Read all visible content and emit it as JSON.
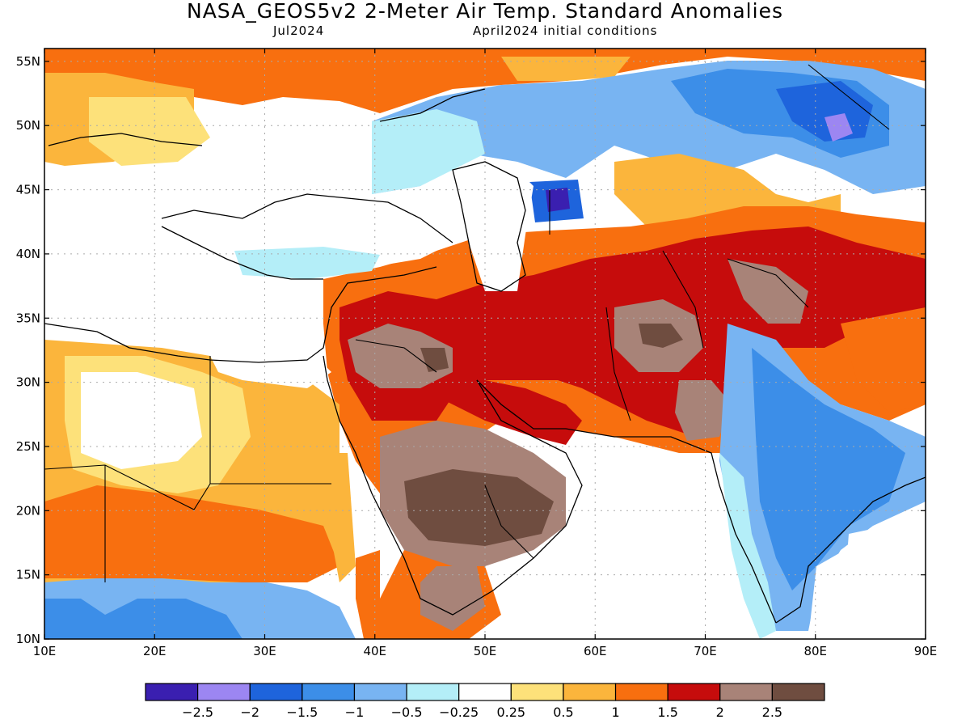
{
  "title": "NASA_GEOS5v2 2-Meter Air Temp. Standard Anomalies",
  "valid_month": "Jul2024",
  "init_conditions": "April2024 initial conditions",
  "lon_ticks": [
    "10E",
    "20E",
    "30E",
    "40E",
    "50E",
    "60E",
    "70E",
    "80E",
    "90E"
  ],
  "lat_ticks": [
    "55N",
    "50N",
    "45N",
    "40N",
    "35N",
    "30N",
    "25N",
    "20N",
    "15N",
    "10N"
  ],
  "map_extent": {
    "lon": [
      10,
      90
    ],
    "lat": [
      10,
      56
    ]
  },
  "colorbar": {
    "colors": [
      "#3a1fb0",
      "#9c86f2",
      "#1e64dc",
      "#3c8ee8",
      "#78b4f2",
      "#b4eef8",
      "#ffffff",
      "#fde17a",
      "#fbb53c",
      "#f86f0f",
      "#c60c0c",
      "#a88378",
      "#6f4d40"
    ],
    "labels": [
      "-2.5",
      "-2",
      "-1.5",
      "-1",
      "-0.5",
      "-0.25",
      "0.25",
      "0.5",
      "1",
      "1.5",
      "2",
      "2.5"
    ]
  },
  "anomaly_regions": [
    {
      "name": "north-europe-positive",
      "level": 1.5,
      "color": "#f86f0f"
    },
    {
      "name": "central-asia-negative",
      "level": -1.5,
      "color": "#1e64dc"
    },
    {
      "name": "kazakhstan-cold-spot",
      "level": -2.5,
      "color": "#3a1fb0"
    },
    {
      "name": "mongolia-cold-spot",
      "level": -2,
      "color": "#9c86f2"
    },
    {
      "name": "arabia-strong-positive",
      "level": 2.5,
      "color": "#6f4d40"
    },
    {
      "name": "iran-afghan-positive",
      "level": 2,
      "color": "#c60c0c"
    },
    {
      "name": "india-negative",
      "level": -1,
      "color": "#3c8ee8"
    },
    {
      "name": "sahel-negative",
      "level": -1,
      "color": "#3c8ee8"
    },
    {
      "name": "sahara-positive",
      "level": 1,
      "color": "#fbb53c"
    }
  ]
}
